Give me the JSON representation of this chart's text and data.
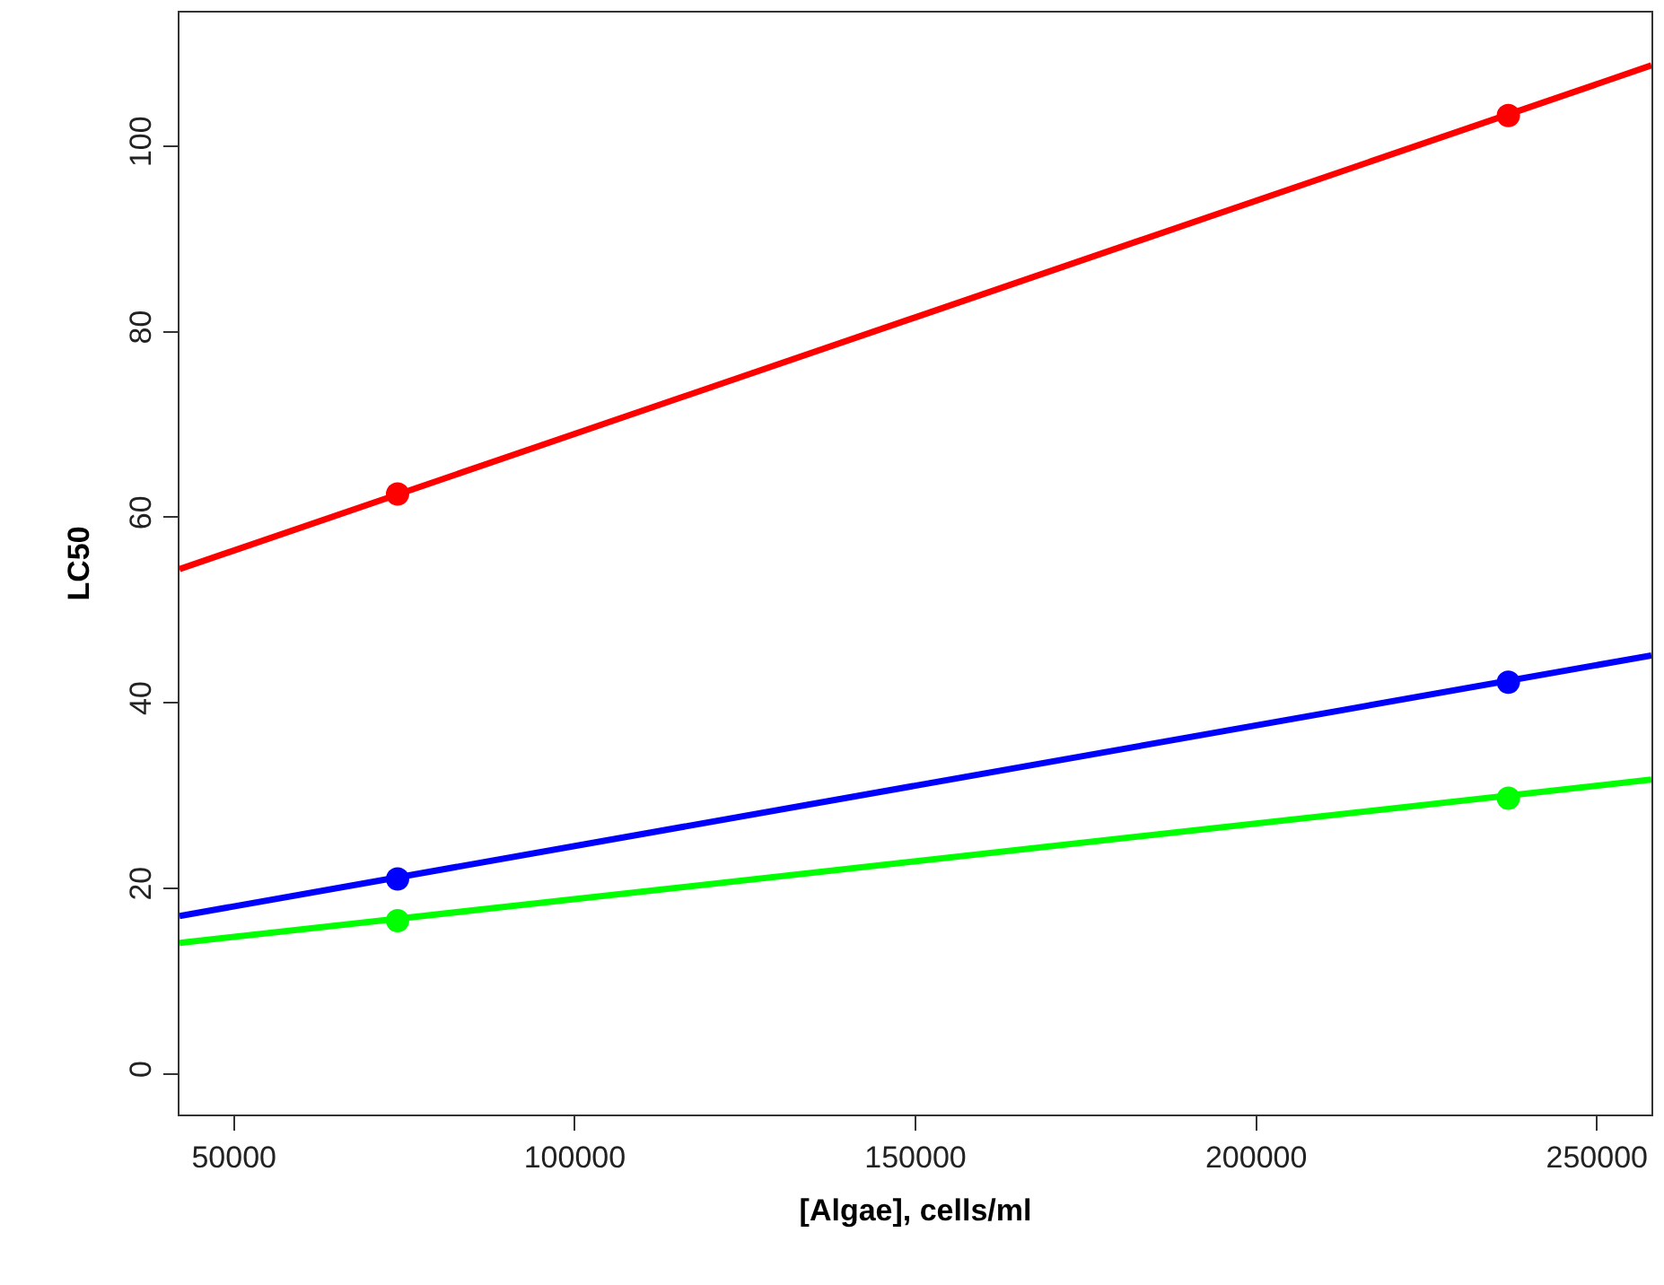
{
  "chart_data": {
    "type": "scatter",
    "xlabel": "[Algae], cells/ml",
    "ylabel": "LC50",
    "xlim": [
      42000,
      258000
    ],
    "ylim": [
      -4.4,
      114.4
    ],
    "xticks": [
      50000,
      100000,
      150000,
      200000,
      250000
    ],
    "yticks": [
      0,
      20,
      40,
      60,
      80,
      100
    ],
    "marker": "circle",
    "series": [
      {
        "type": "line",
        "color": "#ff0000",
        "x": [
          42000,
          258000
        ],
        "values": [
          54.4,
          108.7
        ],
        "marker": "none",
        "line_style": "solid"
      },
      {
        "type": "line",
        "color": "#0000ff",
        "x": [
          42000,
          258000
        ],
        "values": [
          17.0,
          45.1
        ],
        "marker": "none",
        "line_style": "solid"
      },
      {
        "type": "line",
        "color": "#00ff00",
        "x": [
          42000,
          258000
        ],
        "values": [
          14.1,
          31.7
        ],
        "marker": "none",
        "line_style": "solid"
      },
      {
        "color": "#ff0000",
        "x": [
          74000,
          237000
        ],
        "values": [
          62.5,
          103.3
        ]
      },
      {
        "color": "#0000ff",
        "x": [
          74000,
          237000
        ],
        "values": [
          21.0,
          42.2
        ]
      },
      {
        "color": "#00ff00",
        "x": [
          74000,
          237000
        ],
        "values": [
          16.5,
          29.7
        ]
      }
    ]
  }
}
